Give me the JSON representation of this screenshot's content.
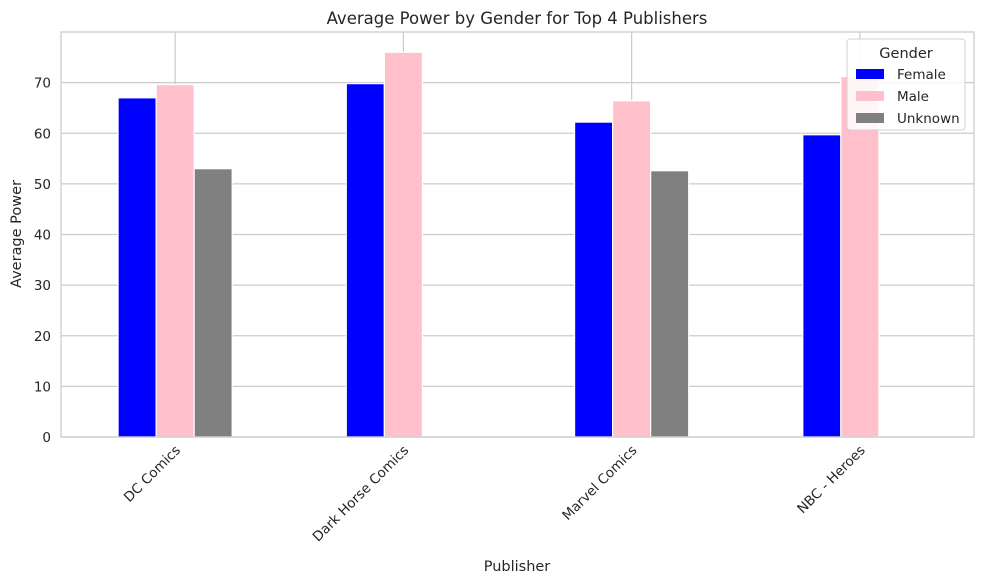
{
  "colors": {
    "Female": "#0000ff",
    "Male": "#ffc0cb",
    "Unknown": "#808080",
    "grid": "#cccccc",
    "text": "#262626"
  },
  "chart_data": {
    "type": "bar",
    "title": "Average Power by Gender for Top 4 Publishers",
    "xlabel": "Publisher",
    "ylabel": "Average Power",
    "categories": [
      "DC Comics",
      "Dark Horse Comics",
      "Marvel Comics",
      "NBC - Heroes"
    ],
    "series": [
      {
        "name": "Female",
        "values": [
          67.0,
          69.8,
          62.2,
          59.7
        ]
      },
      {
        "name": "Male",
        "values": [
          69.6,
          76.0,
          66.4,
          71.2
        ]
      },
      {
        "name": "Unknown",
        "values": [
          53.0,
          null,
          52.6,
          null
        ]
      }
    ],
    "ylim": [
      0,
      80
    ],
    "yticks": [
      0,
      10,
      20,
      30,
      40,
      50,
      60,
      70
    ],
    "grid": true,
    "legend": {
      "title": "Gender",
      "placement": "top-right",
      "entries": [
        "Female",
        "Male",
        "Unknown"
      ]
    }
  }
}
